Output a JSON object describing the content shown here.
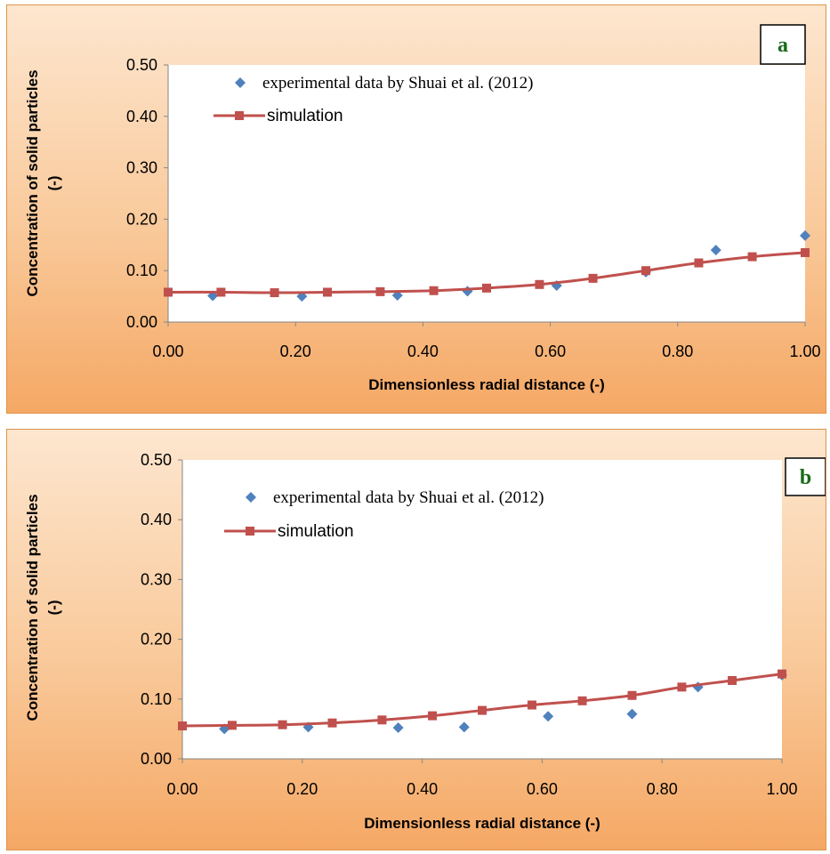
{
  "chart_data": [
    {
      "type": "line",
      "panel_label": "a",
      "xlabel": "Dimensionless radial distance (-)",
      "ylabel_lines": [
        "Concentration of solid particles",
        "(-)"
      ],
      "xlim": [
        0,
        1
      ],
      "ylim": [
        0,
        0.5
      ],
      "x_ticks": [
        "0.00",
        "0.20",
        "0.40",
        "0.60",
        "0.80",
        "1.00"
      ],
      "y_ticks": [
        "0.00",
        "0.10",
        "0.20",
        "0.30",
        "0.40",
        "0.50"
      ],
      "grid": false,
      "legend_position": "top",
      "series": [
        {
          "name": "experimental data by Shuai et al. (2012)",
          "kind": "scatter",
          "marker": "diamond",
          "color": "#4f81bd",
          "x": [
            0.07,
            0.21,
            0.36,
            0.47,
            0.61,
            0.75,
            0.86,
            1.0
          ],
          "y": [
            0.051,
            0.05,
            0.052,
            0.06,
            0.071,
            0.097,
            0.14,
            0.168
          ]
        },
        {
          "name": "simulation",
          "kind": "line",
          "marker": "square",
          "color": "#c0504d",
          "x": [
            0.0,
            0.083,
            0.167,
            0.25,
            0.333,
            0.417,
            0.5,
            0.583,
            0.667,
            0.75,
            0.833,
            0.917,
            1.0
          ],
          "y": [
            0.058,
            0.058,
            0.057,
            0.058,
            0.059,
            0.061,
            0.066,
            0.073,
            0.085,
            0.1,
            0.115,
            0.127,
            0.135
          ]
        }
      ]
    },
    {
      "type": "line",
      "panel_label": "b",
      "xlabel": "Dimensionless radial distance (-)",
      "ylabel_lines": [
        "Concentration of solid particles",
        "(-)"
      ],
      "xlim": [
        0,
        1
      ],
      "ylim": [
        0,
        0.5
      ],
      "x_ticks": [
        "0.00",
        "0.20",
        "0.40",
        "0.60",
        "0.80",
        "1.00"
      ],
      "y_ticks": [
        "0.00",
        "0.10",
        "0.20",
        "0.30",
        "0.40",
        "0.50"
      ],
      "grid": false,
      "legend_position": "top",
      "series": [
        {
          "name": "experimental data by Shuai et al. (2012)",
          "kind": "scatter",
          "marker": "diamond",
          "color": "#4f81bd",
          "x": [
            0.07,
            0.21,
            0.36,
            0.47,
            0.61,
            0.75,
            0.86,
            1.0
          ],
          "y": [
            0.05,
            0.053,
            0.052,
            0.053,
            0.071,
            0.075,
            0.12,
            0.14
          ]
        },
        {
          "name": "simulation",
          "kind": "line",
          "marker": "square",
          "color": "#c0504d",
          "x": [
            0.0,
            0.083,
            0.167,
            0.25,
            0.333,
            0.417,
            0.5,
            0.583,
            0.667,
            0.75,
            0.833,
            0.917,
            1.0
          ],
          "y": [
            0.055,
            0.056,
            0.057,
            0.06,
            0.065,
            0.072,
            0.081,
            0.09,
            0.097,
            0.106,
            0.12,
            0.131,
            0.142
          ]
        }
      ]
    }
  ]
}
